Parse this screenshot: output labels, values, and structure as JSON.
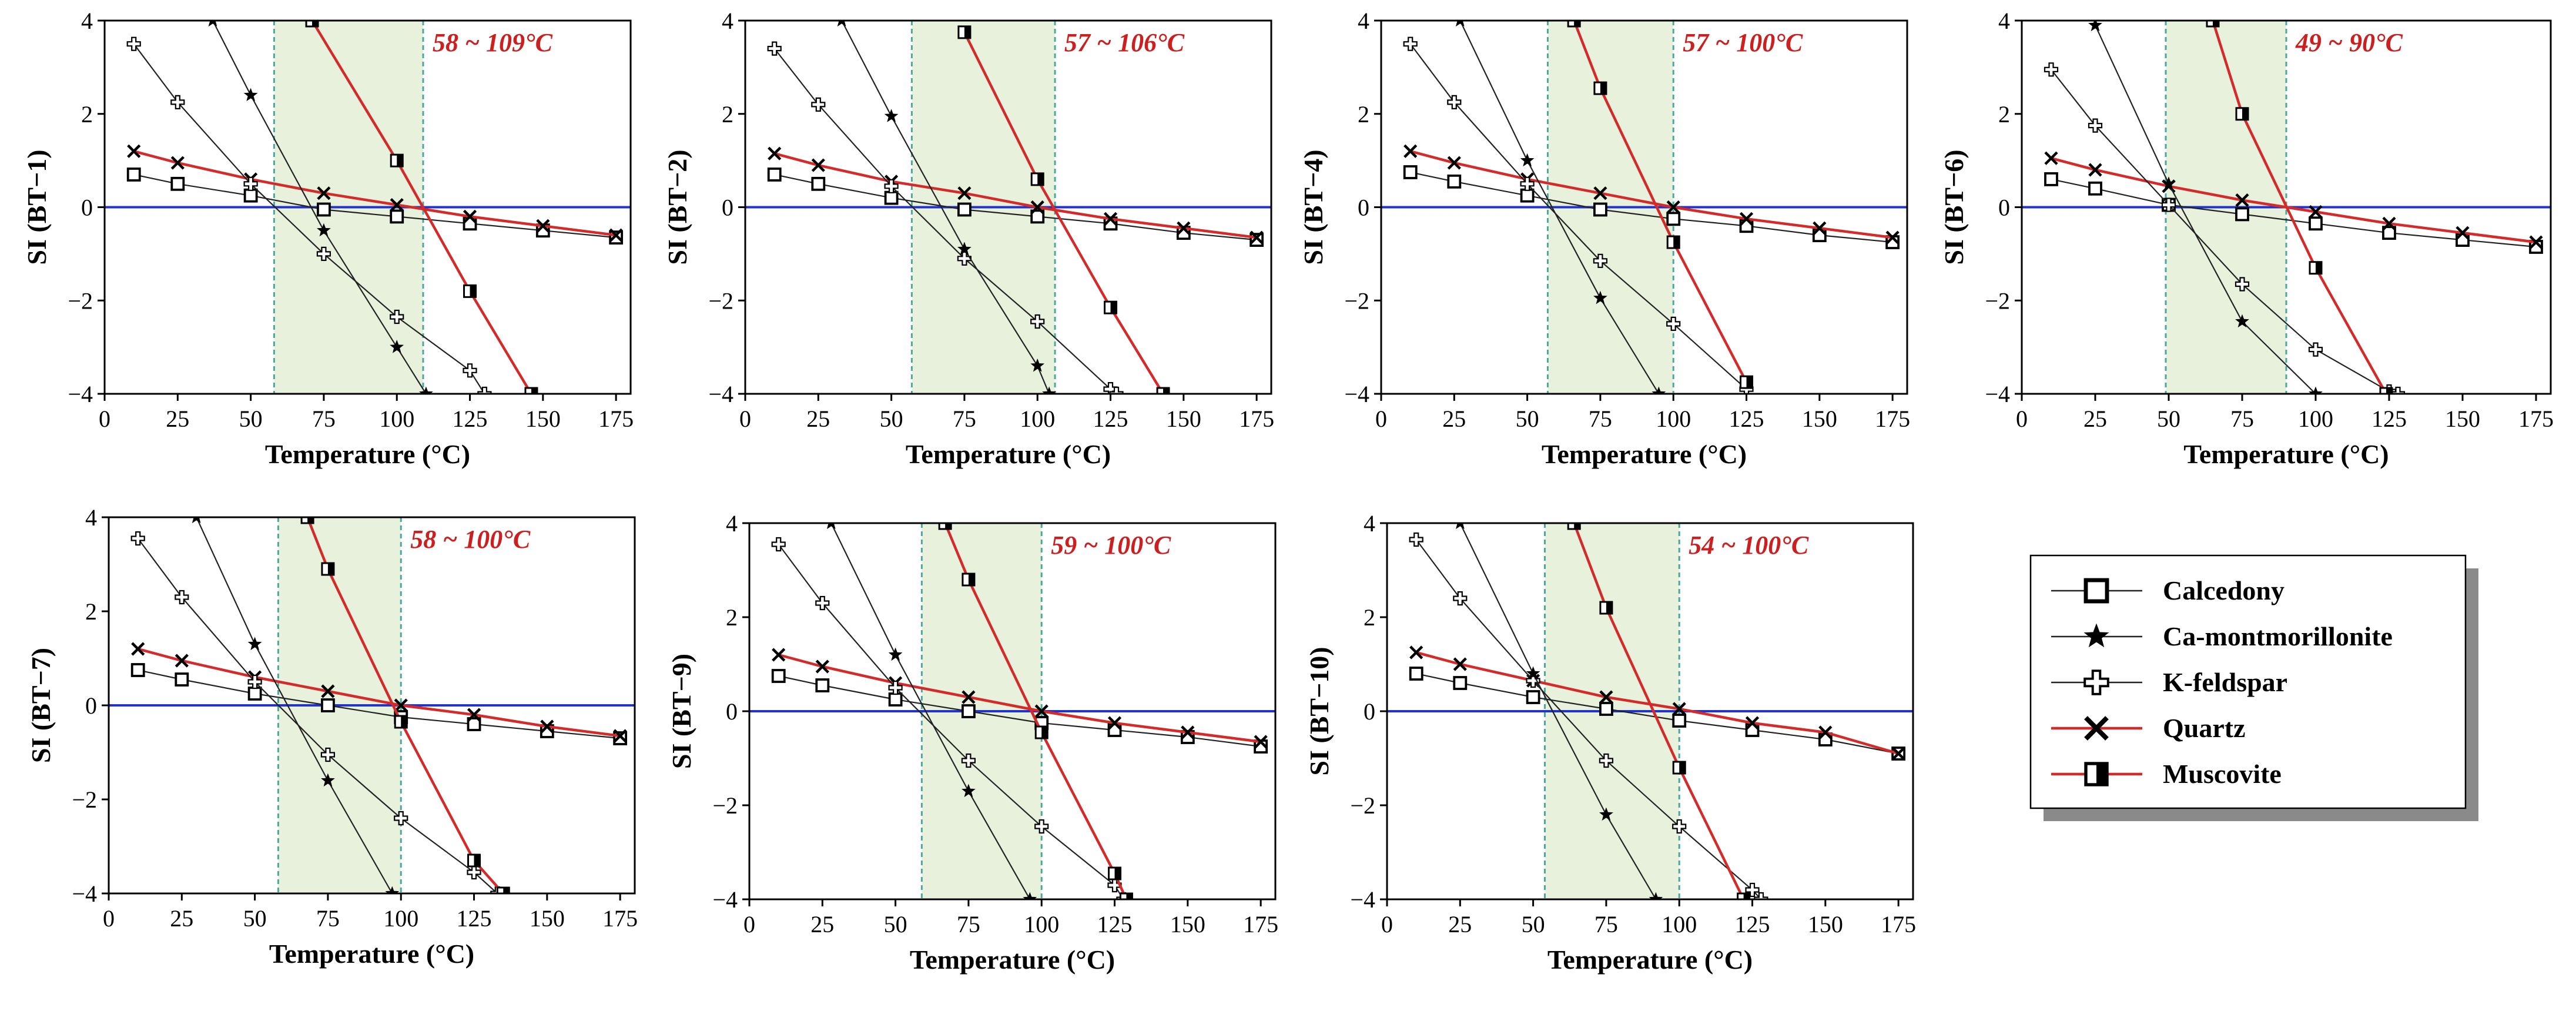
{
  "figure": {
    "legend": [
      {
        "label": "Calcedony",
        "marker": "square",
        "line_color": "#000000"
      },
      {
        "label": "Ca-montmorillonite",
        "marker": "star",
        "line_color": "#000000"
      },
      {
        "label": "K-feldspar",
        "marker": "cross-outline",
        "line_color": "#000000"
      },
      {
        "label": "Quartz",
        "marker": "x",
        "line_color": "#cc2222"
      },
      {
        "label": "Muscovite",
        "marker": "half-square",
        "line_color": "#cc2222"
      }
    ],
    "colors": {
      "red_line": "#d42a2a",
      "black_line": "#222222",
      "zero_line": "#2233cc",
      "shade": "#e8f1dc",
      "shade_border": "#4aa8a0",
      "range_text": "#cc1f1f"
    }
  },
  "chart_data": [
    {
      "type": "line",
      "ylabel": "SI (BT−1)",
      "xlabel": "Temperature (°C)",
      "range_label": "58 ~ 109°C",
      "shade_range": [
        58,
        109
      ],
      "xlim": [
        0,
        180
      ],
      "ylim": [
        -4,
        4
      ],
      "xticks": [
        "0",
        "25",
        "50",
        "75",
        "100",
        "125",
        "150",
        "175"
      ],
      "yticks": [
        "4",
        "2",
        "0",
        "−2",
        "−4"
      ],
      "series": [
        {
          "name": "Calcedony",
          "x": [
            10,
            25,
            50,
            75,
            100,
            125,
            150,
            175
          ],
          "y": [
            0.7,
            0.5,
            0.25,
            -0.05,
            -0.2,
            -0.35,
            -0.5,
            -0.65
          ]
        },
        {
          "name": "Ca-montmorillonite",
          "x": [
            37,
            50,
            75,
            100,
            110
          ],
          "y": [
            4.0,
            2.4,
            -0.5,
            -3.0,
            -4.0
          ]
        },
        {
          "name": "K-feldspar",
          "x": [
            10,
            25,
            50,
            75,
            100,
            125,
            130
          ],
          "y": [
            3.5,
            2.25,
            0.5,
            -1.0,
            -2.35,
            -3.5,
            -4.0
          ]
        },
        {
          "name": "Quartz",
          "x": [
            10,
            25,
            50,
            75,
            100,
            125,
            150,
            175
          ],
          "y": [
            1.2,
            0.95,
            0.6,
            0.3,
            0.05,
            -0.2,
            -0.4,
            -0.6
          ]
        },
        {
          "name": "Muscovite",
          "x": [
            71,
            100,
            125,
            146
          ],
          "y": [
            4.0,
            1.0,
            -1.8,
            -4.0
          ]
        }
      ]
    },
    {
      "type": "line",
      "ylabel": "SI (BT−2)",
      "xlabel": "Temperature (°C)",
      "range_label": "57 ~ 106°C",
      "shade_range": [
        57,
        106
      ],
      "xlim": [
        0,
        180
      ],
      "ylim": [
        -4,
        4
      ],
      "xticks": [
        "0",
        "25",
        "50",
        "75",
        "100",
        "125",
        "150",
        "175"
      ],
      "yticks": [
        "4",
        "2",
        "0",
        "−2",
        "−4"
      ],
      "series": [
        {
          "name": "Calcedony",
          "x": [
            10,
            25,
            50,
            75,
            100,
            125,
            150,
            175
          ],
          "y": [
            0.7,
            0.5,
            0.2,
            -0.05,
            -0.2,
            -0.35,
            -0.55,
            -0.7
          ]
        },
        {
          "name": "Ca-montmorillonite",
          "x": [
            33,
            50,
            75,
            100,
            104
          ],
          "y": [
            4.0,
            1.95,
            -0.9,
            -3.4,
            -4.0
          ]
        },
        {
          "name": "K-feldspar",
          "x": [
            10,
            25,
            50,
            75,
            100,
            125,
            127
          ],
          "y": [
            3.4,
            2.2,
            0.45,
            -1.1,
            -2.45,
            -3.9,
            -4.0
          ]
        },
        {
          "name": "Quartz",
          "x": [
            10,
            25,
            50,
            75,
            100,
            125,
            150,
            175
          ],
          "y": [
            1.15,
            0.9,
            0.55,
            0.3,
            0.0,
            -0.25,
            -0.45,
            -0.65
          ]
        },
        {
          "name": "Muscovite",
          "x": [
            75,
            100,
            125,
            143
          ],
          "y": [
            3.75,
            0.6,
            -2.15,
            -4.0
          ]
        }
      ]
    },
    {
      "type": "line",
      "ylabel": "SI (BT−4)",
      "xlabel": "Temperature (°C)",
      "range_label": "57 ~ 100°C",
      "shade_range": [
        57,
        100
      ],
      "xlim": [
        0,
        180
      ],
      "ylim": [
        -4,
        4
      ],
      "xticks": [
        "0",
        "25",
        "50",
        "75",
        "100",
        "125",
        "150",
        "175"
      ],
      "yticks": [
        "4",
        "2",
        "0",
        "−2",
        "−4"
      ],
      "series": [
        {
          "name": "Calcedony",
          "x": [
            10,
            25,
            50,
            75,
            100,
            125,
            150,
            175
          ],
          "y": [
            0.75,
            0.55,
            0.25,
            -0.05,
            -0.25,
            -0.4,
            -0.6,
            -0.75
          ]
        },
        {
          "name": "Ca-montmorillonite",
          "x": [
            27,
            50,
            75,
            95
          ],
          "y": [
            4.0,
            1.0,
            -1.95,
            -4.0
          ]
        },
        {
          "name": "K-feldspar",
          "x": [
            10,
            25,
            50,
            75,
            100,
            125
          ],
          "y": [
            3.5,
            2.25,
            0.5,
            -1.15,
            -2.5,
            -3.9
          ]
        },
        {
          "name": "Quartz",
          "x": [
            10,
            25,
            50,
            75,
            100,
            125,
            150,
            175
          ],
          "y": [
            1.2,
            0.95,
            0.6,
            0.3,
            0.0,
            -0.25,
            -0.45,
            -0.65
          ]
        },
        {
          "name": "Muscovite",
          "x": [
            66,
            75,
            100,
            125
          ],
          "y": [
            4.0,
            2.55,
            -0.75,
            -3.75
          ]
        }
      ]
    },
    {
      "type": "line",
      "ylabel": "SI (BT−6)",
      "xlabel": "Temperature (°C)",
      "range_label": "49 ~ 90°C",
      "shade_range": [
        49,
        90
      ],
      "xlim": [
        0,
        180
      ],
      "ylim": [
        -4,
        4
      ],
      "xticks": [
        "0",
        "25",
        "50",
        "75",
        "100",
        "125",
        "150",
        "175"
      ],
      "yticks": [
        "4",
        "2",
        "0",
        "−2",
        "−4"
      ],
      "series": [
        {
          "name": "Calcedony",
          "x": [
            10,
            25,
            50,
            75,
            100,
            125,
            150,
            175
          ],
          "y": [
            0.6,
            0.4,
            0.05,
            -0.15,
            -0.35,
            -0.55,
            -0.7,
            -0.85
          ]
        },
        {
          "name": "Ca-montmorillonite",
          "x": [
            25,
            50,
            75,
            100
          ],
          "y": [
            3.9,
            0.5,
            -2.45,
            -4.0
          ]
        },
        {
          "name": "K-feldspar",
          "x": [
            10,
            25,
            50,
            75,
            100,
            125,
            128
          ],
          "y": [
            2.95,
            1.75,
            0.05,
            -1.65,
            -3.05,
            -3.95,
            -4.0
          ]
        },
        {
          "name": "Quartz",
          "x": [
            10,
            25,
            50,
            75,
            100,
            125,
            150,
            175
          ],
          "y": [
            1.05,
            0.8,
            0.45,
            0.15,
            -0.1,
            -0.35,
            -0.55,
            -0.75
          ]
        },
        {
          "name": "Muscovite",
          "x": [
            65,
            75,
            100,
            124
          ],
          "y": [
            4.0,
            2.0,
            -1.3,
            -4.0
          ]
        }
      ]
    },
    {
      "type": "line",
      "ylabel": "SI (BT−7)",
      "xlabel": "Temperature (°C)",
      "range_label": "58 ~ 100°C",
      "shade_range": [
        58,
        100
      ],
      "xlim": [
        0,
        180
      ],
      "ylim": [
        -4,
        4
      ],
      "xticks": [
        "0",
        "25",
        "50",
        "75",
        "100",
        "125",
        "150",
        "175"
      ],
      "yticks": [
        "4",
        "2",
        "0",
        "−2",
        "−4"
      ],
      "series": [
        {
          "name": "Calcedony",
          "x": [
            10,
            25,
            50,
            75,
            100,
            125,
            150,
            175
          ],
          "y": [
            0.75,
            0.55,
            0.25,
            0.0,
            -0.25,
            -0.4,
            -0.55,
            -0.7
          ]
        },
        {
          "name": "Ca-montmorillonite",
          "x": [
            30,
            50,
            75,
            97
          ],
          "y": [
            4.0,
            1.3,
            -1.6,
            -4.0
          ]
        },
        {
          "name": "K-feldspar",
          "x": [
            10,
            25,
            50,
            75,
            100,
            125,
            133
          ],
          "y": [
            3.55,
            2.3,
            0.5,
            -1.05,
            -2.4,
            -3.55,
            -4.0
          ]
        },
        {
          "name": "Quartz",
          "x": [
            10,
            25,
            50,
            75,
            100,
            125,
            150,
            175
          ],
          "y": [
            1.2,
            0.95,
            0.6,
            0.3,
            0.0,
            -0.2,
            -0.45,
            -0.65
          ]
        },
        {
          "name": "Muscovite",
          "x": [
            68,
            75,
            100,
            125,
            135
          ],
          "y": [
            4.0,
            2.9,
            -0.35,
            -3.3,
            -4.0
          ]
        }
      ]
    },
    {
      "type": "line",
      "ylabel": "SI (BT−9)",
      "xlabel": "Temperature (°C)",
      "range_label": "59 ~ 100°C",
      "shade_range": [
        59,
        100
      ],
      "xlim": [
        0,
        180
      ],
      "ylim": [
        -4,
        4
      ],
      "xticks": [
        "0",
        "25",
        "50",
        "75",
        "100",
        "125",
        "150",
        "175"
      ],
      "yticks": [
        "4",
        "2",
        "0",
        "−2",
        "−4"
      ],
      "series": [
        {
          "name": "Calcedony",
          "x": [
            10,
            25,
            50,
            75,
            100,
            125,
            150,
            175
          ],
          "y": [
            0.75,
            0.55,
            0.25,
            0.0,
            -0.25,
            -0.4,
            -0.55,
            -0.75
          ]
        },
        {
          "name": "Ca-montmorillonite",
          "x": [
            28,
            50,
            75,
            96
          ],
          "y": [
            4.0,
            1.2,
            -1.7,
            -4.0
          ]
        },
        {
          "name": "K-feldspar",
          "x": [
            10,
            25,
            50,
            75,
            100,
            125,
            128
          ],
          "y": [
            3.55,
            2.3,
            0.5,
            -1.05,
            -2.45,
            -3.7,
            -4.0
          ]
        },
        {
          "name": "Quartz",
          "x": [
            10,
            25,
            50,
            75,
            100,
            125,
            150,
            175
          ],
          "y": [
            1.2,
            0.95,
            0.6,
            0.3,
            0.0,
            -0.25,
            -0.45,
            -0.65
          ]
        },
        {
          "name": "Muscovite",
          "x": [
            67,
            75,
            100,
            125,
            129
          ],
          "y": [
            4.0,
            2.8,
            -0.45,
            -3.45,
            -4.0
          ]
        }
      ]
    },
    {
      "type": "line",
      "ylabel": "SI (BT−10)",
      "xlabel": "Temperature (°C)",
      "range_label": "54 ~ 100°C",
      "shade_range": [
        54,
        100
      ],
      "xlim": [
        0,
        180
      ],
      "ylim": [
        -4,
        4
      ],
      "xticks": [
        "0",
        "25",
        "50",
        "75",
        "100",
        "125",
        "150",
        "175"
      ],
      "yticks": [
        "4",
        "2",
        "0",
        "−2",
        "−4"
      ],
      "series": [
        {
          "name": "Calcedony",
          "x": [
            10,
            25,
            50,
            75,
            100,
            125,
            150,
            175
          ],
          "y": [
            0.8,
            0.6,
            0.3,
            0.05,
            -0.2,
            -0.4,
            -0.6,
            -0.9
          ]
        },
        {
          "name": "Ca-montmorillonite",
          "x": [
            25,
            50,
            75,
            92
          ],
          "y": [
            4.0,
            0.8,
            -2.2,
            -4.0
          ]
        },
        {
          "name": "K-feldspar",
          "x": [
            10,
            25,
            50,
            75,
            100,
            125,
            128
          ],
          "y": [
            3.65,
            2.4,
            0.65,
            -1.05,
            -2.45,
            -3.8,
            -4.0
          ]
        },
        {
          "name": "Quartz",
          "x": [
            10,
            25,
            50,
            75,
            100,
            125,
            150,
            175
          ],
          "y": [
            1.25,
            1.0,
            0.65,
            0.3,
            0.05,
            -0.25,
            -0.45,
            -0.9
          ]
        },
        {
          "name": "Muscovite",
          "x": [
            64,
            75,
            100,
            122
          ],
          "y": [
            4.0,
            2.2,
            -1.2,
            -4.0
          ]
        }
      ]
    }
  ]
}
